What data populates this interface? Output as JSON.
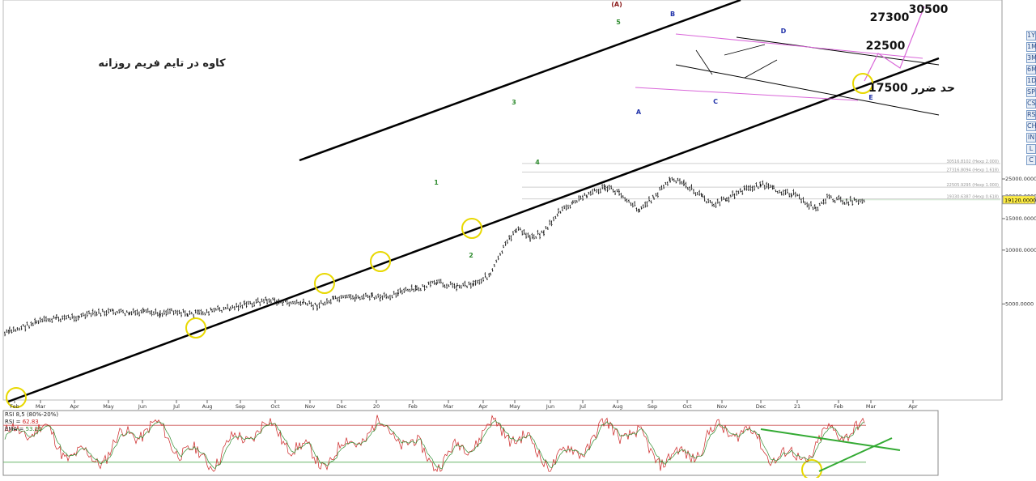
{
  "chart_data": [
    {
      "type": "line",
      "title": "کاوه در تایم فریم روزانه",
      "price_scale": "log",
      "ylim": [
        3300,
        31500
      ],
      "x_months": [
        "Feb",
        "Mar",
        "Apr",
        "May",
        "Jun",
        "Jul",
        "Aug",
        "Sep",
        "Oct",
        "Nov",
        "Dec",
        "20",
        "Feb",
        "Mar",
        "Apr",
        "May",
        "Jun",
        "Jul",
        "Aug",
        "Sep",
        "Oct",
        "Nov",
        "Dec",
        "21",
        "Feb",
        "Mar",
        "Apr"
      ],
      "y_ticks": [
        "25000.0000",
        "20000.0000",
        "15000.0000",
        "10000.0000",
        "5000.0000"
      ],
      "y_tick_values": [
        25000,
        20000,
        15000,
        10000,
        5000
      ],
      "current_price": {
        "label": "19120.0000",
        "value": 19120
      },
      "fib_labels": [
        {
          "text": "30516.8102 (Hexp 2.000)",
          "value": 30517
        },
        {
          "text": "27316.8094 (Hexp 1.618)",
          "value": 27317
        },
        {
          "text": "22505.9295 (Hexp 1.000)",
          "value": 22506
        },
        {
          "text": "19330.6387 (Hexp 0.618)",
          "value": 19331
        }
      ],
      "targets": [
        {
          "text": "30500",
          "value": 30500
        },
        {
          "text": "27300",
          "value": 27300
        },
        {
          "text": "22500",
          "value": 22500
        },
        {
          "text": "17500 حد ضرر",
          "value": 17500
        }
      ],
      "waves": [
        {
          "text": "(A)",
          "color": "#8b1a1a"
        },
        {
          "text": "5",
          "color": "#2e8b2e"
        },
        {
          "text": "3",
          "color": "#2e8b2e"
        },
        {
          "text": "4",
          "color": "#2e8b2e"
        },
        {
          "text": "1",
          "color": "#2e8b2e"
        },
        {
          "text": "2",
          "color": "#2e8b2e"
        },
        {
          "text": "A",
          "color": "#2233aa"
        },
        {
          "text": "B",
          "color": "#2233aa"
        },
        {
          "text": "C",
          "color": "#2233aa"
        },
        {
          "text": "D",
          "color": "#2233aa"
        },
        {
          "text": "E",
          "color": "#2233aa"
        }
      ],
      "price_path": [
        [
          "Feb",
          3400
        ],
        [
          "Feb",
          3500
        ],
        [
          "Mar",
          3950
        ],
        [
          "Mar",
          4150
        ],
        [
          "Apr",
          4250
        ],
        [
          "Apr",
          4450
        ],
        [
          "May",
          4520
        ],
        [
          "May",
          4420
        ],
        [
          "Jun",
          4480
        ],
        [
          "Jun",
          4420
        ],
        [
          "Jul",
          4620
        ],
        [
          "Jul",
          4380
        ],
        [
          "Aug",
          4420
        ],
        [
          "Aug",
          4580
        ],
        [
          "Sep",
          4750
        ],
        [
          "Sep",
          4950
        ],
        [
          "Oct",
          5250
        ],
        [
          "Oct",
          5100
        ],
        [
          "Nov",
          5050
        ],
        [
          "Nov",
          4880
        ],
        [
          "Dec",
          5280
        ],
        [
          "Dec",
          5450
        ],
        [
          "20",
          5500
        ],
        [
          "20",
          5350
        ],
        [
          "Feb",
          5800
        ],
        [
          "Feb",
          6050
        ],
        [
          "Mar",
          6550
        ],
        [
          "Mar",
          6300
        ],
        [
          "Apr",
          6500
        ],
        [
          "Apr",
          7300
        ],
        [
          "May",
          10200
        ],
        [
          "May",
          13200
        ],
        [
          "May",
          11800
        ],
        [
          "Jun",
          12600
        ],
        [
          "Jun",
          16200
        ],
        [
          "Jul",
          18200
        ],
        [
          "Jul",
          20500
        ],
        [
          "Aug",
          22400
        ],
        [
          "Aug",
          21000
        ],
        [
          "Aug",
          16800
        ],
        [
          "Sep",
          19800
        ],
        [
          "Sep",
          24800
        ],
        [
          "Oct",
          23500
        ],
        [
          "Oct",
          19800
        ],
        [
          "Nov",
          17800
        ],
        [
          "Nov",
          19500
        ],
        [
          "Dec",
          21800
        ],
        [
          "Dec",
          23300
        ],
        [
          "Dec",
          21800
        ],
        [
          "21",
          20800
        ],
        [
          "21",
          17000
        ],
        [
          "Feb",
          19600
        ],
        [
          "Feb",
          18700
        ],
        [
          "Mar",
          19120
        ]
      ],
      "lines": [
        {
          "name": "",
          "color": "#000000"
        },
        {
          "name": "",
          "color": "#000000"
        },
        {
          "name": "",
          "color": "#d966d9"
        }
      ],
      "circles_color": "#e8d800",
      "markers_count": 11
    },
    {
      "type": "line",
      "title": "RSI 8,5 (80%-20%)",
      "ylim": [
        0,
        100
      ],
      "series": [
        {
          "name": "RSI",
          "value_label": "62.83",
          "value": 62.83,
          "color": "#cc2222"
        },
        {
          "name": "EMA",
          "value_label": "53.20",
          "value": 53.2,
          "color": "#2e8b2e"
        }
      ],
      "levels": [
        80,
        20
      ],
      "trendline_color": "#33aa33"
    }
  ],
  "tools": [
    "1Y",
    "1M",
    "3M",
    "6M",
    "1D",
    "SP",
    "CS",
    "RS",
    "CH",
    "IN",
    "L",
    "C"
  ]
}
